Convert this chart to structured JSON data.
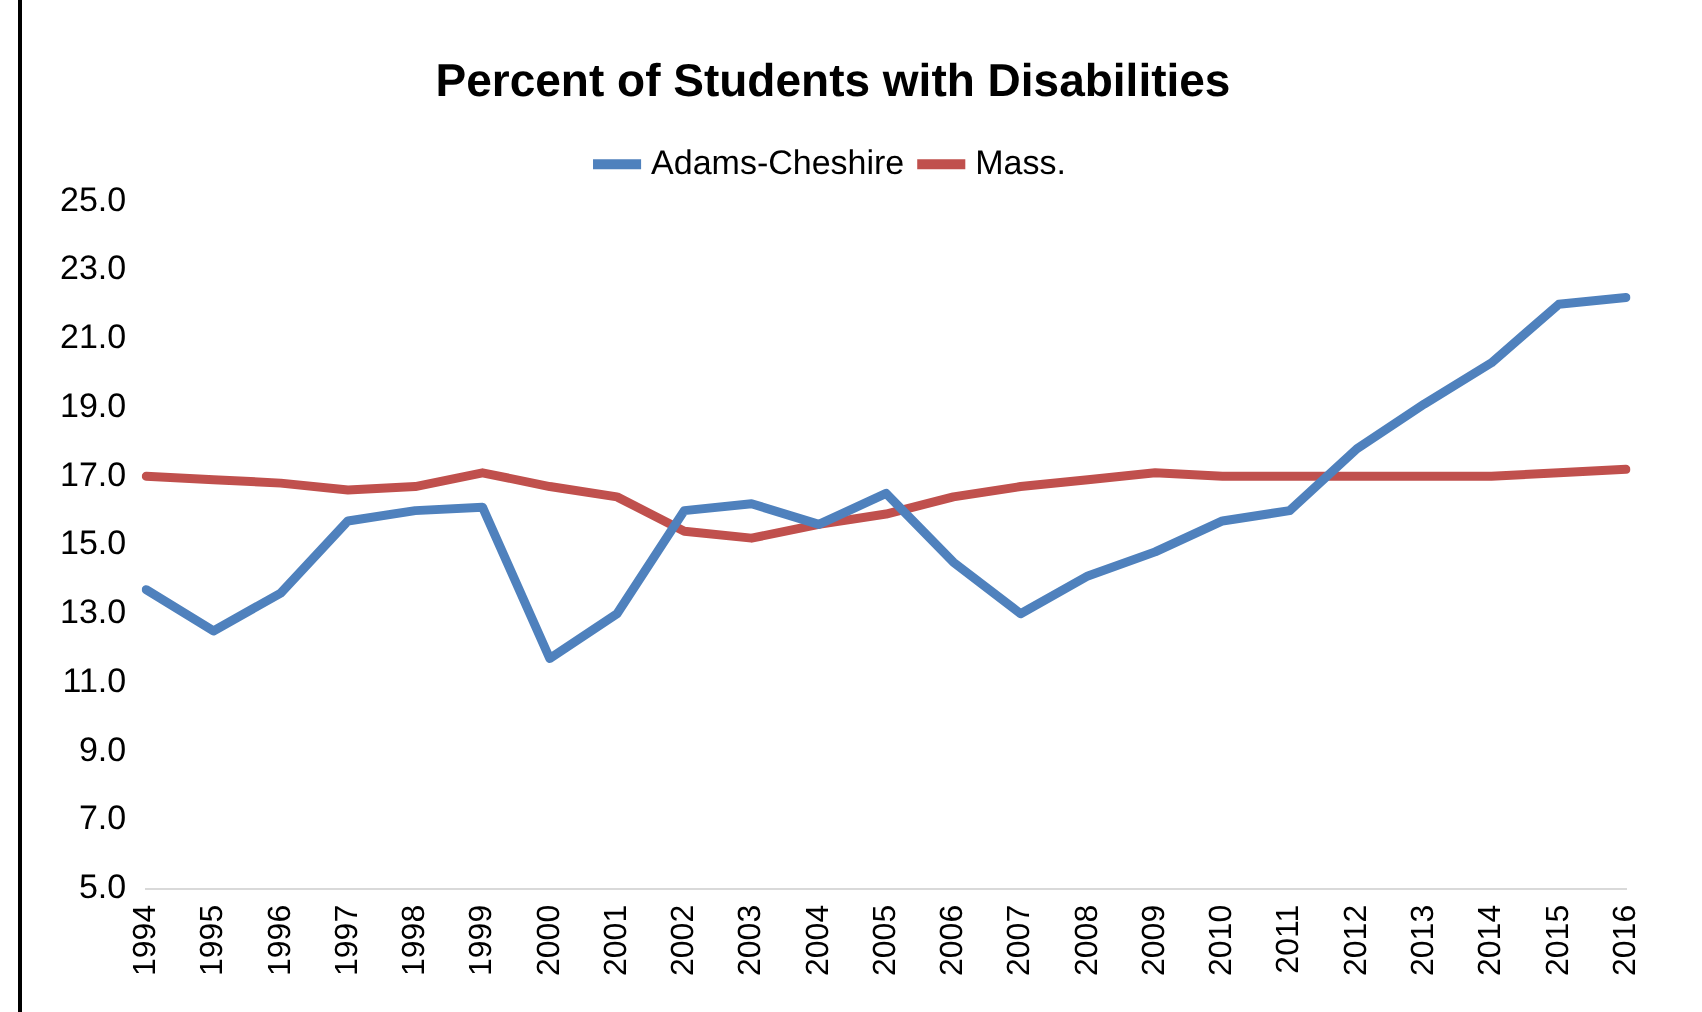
{
  "chart_data": {
    "type": "line",
    "title": "Percent of Students with Disabilities",
    "categories": [
      "1994",
      "1995",
      "1996",
      "1997",
      "1998",
      "1999",
      "2000",
      "2001",
      "2002",
      "2003",
      "2004",
      "2005",
      "2006",
      "2007",
      "2008",
      "2009",
      "2010",
      "2011",
      "2012",
      "2013",
      "2014",
      "2015",
      "2016"
    ],
    "series": [
      {
        "name": "Adams-Cheshire",
        "color": "#4f81bd",
        "values": [
          13.7,
          12.5,
          13.6,
          15.7,
          16.0,
          16.1,
          11.7,
          13.0,
          16.0,
          16.2,
          15.6,
          16.5,
          14.5,
          13.0,
          14.1,
          14.8,
          15.7,
          16.0,
          17.8,
          19.1,
          20.3,
          22.0,
          22.2
        ]
      },
      {
        "name": "Mass.",
        "color": "#c0504d",
        "values": [
          17.0,
          16.9,
          16.8,
          16.6,
          16.7,
          17.1,
          16.7,
          16.4,
          15.4,
          15.2,
          15.6,
          15.9,
          16.4,
          16.7,
          16.9,
          17.1,
          17.0,
          17.0,
          17.0,
          17.0,
          17.0,
          17.1,
          17.2
        ]
      }
    ],
    "ylim": [
      5,
      25
    ],
    "yticks": [
      {
        "value": 5,
        "label": "5.0"
      },
      {
        "value": 7,
        "label": "7.0"
      },
      {
        "value": 9,
        "label": "9.0"
      },
      {
        "value": 11,
        "label": "11.0"
      },
      {
        "value": 13,
        "label": "13.0"
      },
      {
        "value": 15,
        "label": "15.0"
      },
      {
        "value": 17,
        "label": "17.0"
      },
      {
        "value": 19,
        "label": "19.0"
      },
      {
        "value": 21,
        "label": "21.0"
      },
      {
        "value": 23,
        "label": "23.0"
      },
      {
        "value": 25,
        "label": "25.0"
      }
    ],
    "grid": false,
    "legend": "top",
    "marker": "none",
    "line_style": "solid"
  }
}
